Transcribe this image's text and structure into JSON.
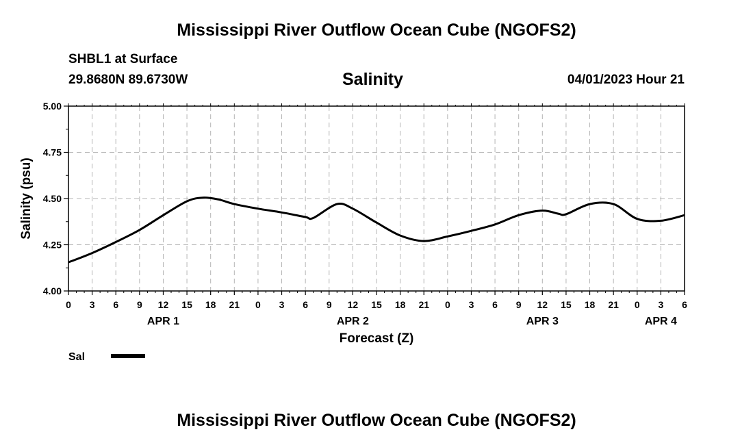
{
  "header": {
    "title": "Mississippi River Outflow Ocean Cube (NGOFS2)",
    "station": "SHBL1 at Surface",
    "coords": "29.8680N  89.6730W",
    "variable": "Salinity",
    "timestamp": "04/01/2023 Hour 21"
  },
  "footer": {
    "title": "Mississippi River Outflow Ocean Cube (NGOFS2)"
  },
  "chart_data": {
    "type": "line",
    "title": "Salinity",
    "xlabel": "Forecast (Z)",
    "ylabel": "Salinity (psu)",
    "ylim": [
      4.0,
      5.0
    ],
    "yticks": [
      "4.00",
      "4.25",
      "4.50",
      "4.75",
      "5.00"
    ],
    "xlim": [
      0,
      78
    ],
    "xticks": [
      "0",
      "3",
      "6",
      "9",
      "12",
      "15",
      "18",
      "21",
      "0",
      "3",
      "6",
      "9",
      "12",
      "15",
      "18",
      "21",
      "0",
      "3",
      "6",
      "9",
      "12",
      "15",
      "18",
      "21",
      "0",
      "3",
      "6"
    ],
    "day_labels": [
      {
        "label": "APR 1",
        "hour": 12
      },
      {
        "label": "APR 2",
        "hour": 36
      },
      {
        "label": "APR 3",
        "hour": 60
      },
      {
        "label": "APR 4",
        "hour": 75
      }
    ],
    "grid": true,
    "legend": {
      "label": "Sal",
      "position": "bottom-left"
    },
    "series": [
      {
        "name": "Sal",
        "x": [
          0,
          3,
          6,
          9,
          12,
          15,
          17,
          19,
          21,
          24,
          27,
          30,
          31,
          34,
          36,
          39,
          42,
          45,
          48,
          51,
          54,
          57,
          60,
          62,
          63,
          66,
          69,
          72,
          75,
          78
        ],
        "values": [
          4.155,
          4.205,
          4.265,
          4.33,
          4.41,
          4.485,
          4.505,
          4.495,
          4.47,
          4.445,
          4.425,
          4.4,
          4.395,
          4.47,
          4.445,
          4.37,
          4.3,
          4.27,
          4.295,
          4.325,
          4.36,
          4.41,
          4.435,
          4.418,
          4.415,
          4.47,
          4.47,
          4.39,
          4.38,
          4.41
        ]
      }
    ]
  }
}
